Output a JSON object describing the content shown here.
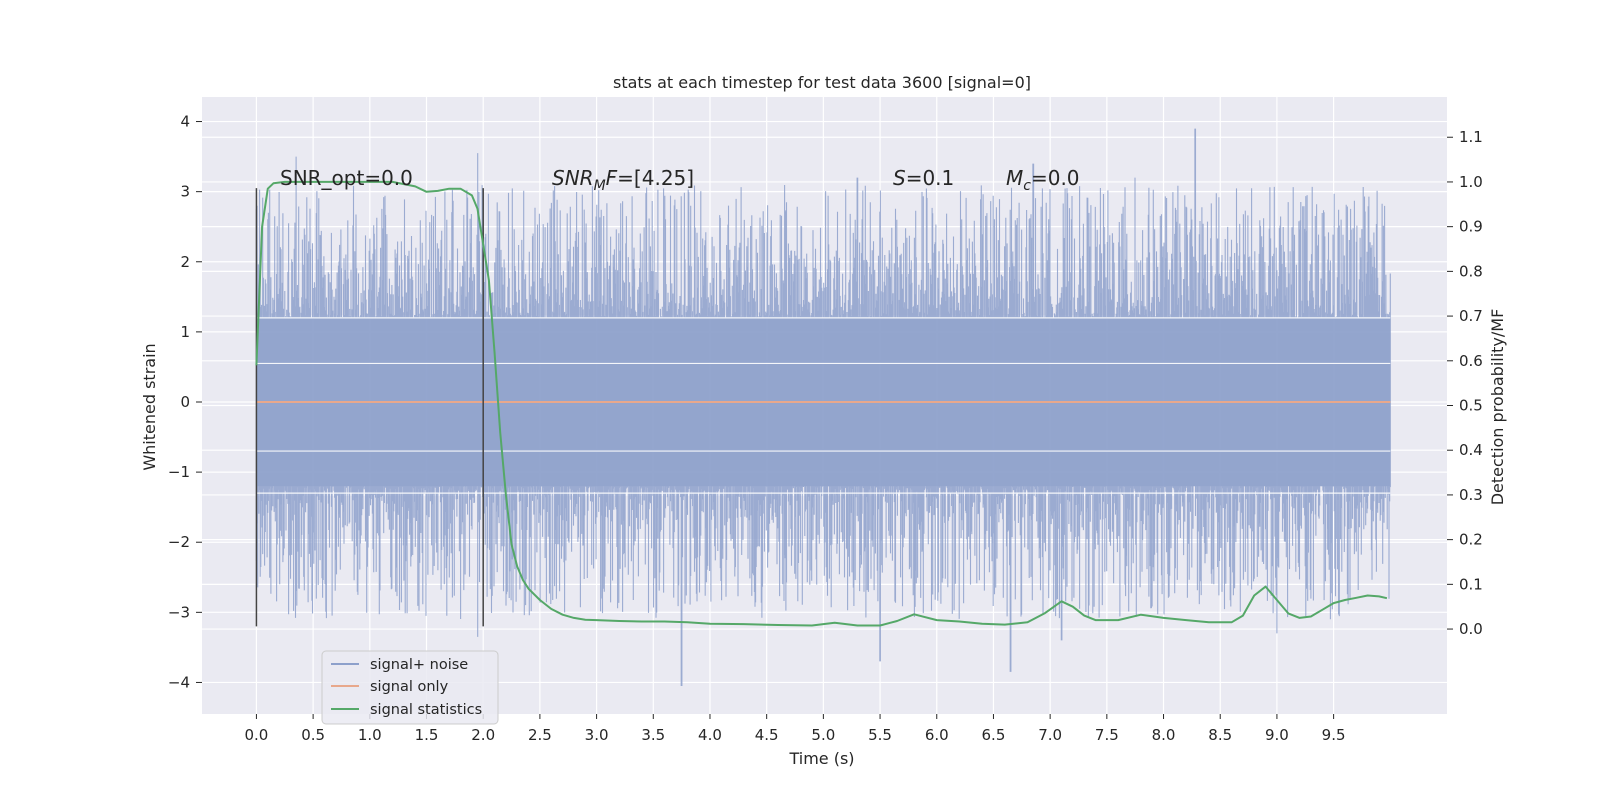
{
  "chart_data": {
    "type": "line",
    "title": "stats at each timestep for test data 3600 [signal=0]",
    "xlabel": "Time (s)",
    "ylabel": "Whitened strain",
    "y2label": "Detection probability/MF",
    "xlim": [
      -0.48,
      10.5
    ],
    "ylim": [
      -4.45,
      4.35
    ],
    "y2lim": [
      -0.19,
      1.19
    ],
    "xticks": [
      0.0,
      0.5,
      1.0,
      1.5,
      2.0,
      2.5,
      3.0,
      3.5,
      4.0,
      4.5,
      5.0,
      5.5,
      6.0,
      6.5,
      7.0,
      7.5,
      8.0,
      8.5,
      9.0,
      9.5
    ],
    "xtick_labels": [
      "0.0",
      "0.5",
      "1.0",
      "1.5",
      "2.0",
      "2.5",
      "3.0",
      "3.5",
      "4.0",
      "4.5",
      "5.0",
      "5.5",
      "6.0",
      "6.5",
      "7.0",
      "7.5",
      "8.0",
      "8.5",
      "9.0",
      "9.5"
    ],
    "yticks": [
      -4,
      -3,
      -2,
      -1,
      0,
      1,
      2,
      3,
      4
    ],
    "ytick_labels": [
      "−4",
      "−3",
      "−2",
      "−1",
      "0",
      "1",
      "2",
      "3",
      "4"
    ],
    "y2ticks": [
      0.0,
      0.1,
      0.2,
      0.3,
      0.4,
      0.5,
      0.6,
      0.7,
      0.8,
      0.9,
      1.0,
      1.1
    ],
    "y2tick_labels": [
      "0.0",
      "0.1",
      "0.2",
      "0.3",
      "0.4",
      "0.5",
      "0.6",
      "0.7",
      "0.8",
      "0.9",
      "1.0",
      "1.1"
    ],
    "grid": true,
    "legend_position": "lower-left",
    "legend": [
      {
        "label": "signal+ noise",
        "color": "#8da0cb"
      },
      {
        "label": "signal only",
        "color": "#e8a88c"
      },
      {
        "label": "signal statistics",
        "color": "#55a868"
      }
    ],
    "annotations": [
      {
        "id": "snr-opt",
        "text": "SNR_opt=0.0",
        "x": 0.2
      },
      {
        "id": "snr-mf",
        "text": "=[4.25]",
        "x": 2.6
      },
      {
        "id": "s-val",
        "text": "=0.1",
        "x": 5.6
      },
      {
        "id": "mc-val",
        "text": "=0.0",
        "x": 6.6
      }
    ],
    "vertical_lines": [
      0.0,
      2.0
    ],
    "series": [
      {
        "name": "signal+ noise",
        "axis": "left",
        "color": "#8da0cb",
        "description_kind": "noise-band",
        "x_range": [
          0.0,
          10.0
        ],
        "peaks_up": [
          {
            "x": 0.35,
            "y": 3.5
          },
          {
            "x": 1.95,
            "y": 3.55
          },
          {
            "x": 5.3,
            "y": 3.2
          },
          {
            "x": 6.85,
            "y": 3.4
          },
          {
            "x": 8.28,
            "y": 3.9
          },
          {
            "x": 7.75,
            "y": 3.2
          }
        ],
        "peaks_down": [
          {
            "x": 1.95,
            "y": -3.35
          },
          {
            "x": 3.75,
            "y": -4.05
          },
          {
            "x": 5.5,
            "y": -3.7
          },
          {
            "x": 6.65,
            "y": -3.85
          },
          {
            "x": 7.1,
            "y": -3.4
          },
          {
            "x": 9.0,
            "y": -3.3
          }
        ]
      },
      {
        "name": "signal only",
        "axis": "left",
        "color": "#e8a88c",
        "x": [
          0.0,
          10.0
        ],
        "y": [
          0.0,
          0.0
        ]
      },
      {
        "name": "signal statistics",
        "axis": "right",
        "color": "#55a868",
        "x": [
          0.0,
          0.05,
          0.1,
          0.15,
          0.25,
          0.4,
          0.6,
          0.8,
          1.0,
          1.2,
          1.4,
          1.5,
          1.6,
          1.7,
          1.8,
          1.9,
          1.95,
          2.0,
          2.05,
          2.1,
          2.15,
          2.2,
          2.25,
          2.3,
          2.35,
          2.4,
          2.5,
          2.6,
          2.7,
          2.8,
          2.9,
          3.0,
          3.2,
          3.4,
          3.6,
          3.8,
          4.0,
          4.3,
          4.6,
          4.9,
          5.1,
          5.3,
          5.5,
          5.65,
          5.8,
          6.0,
          6.2,
          6.4,
          6.6,
          6.8,
          6.95,
          7.1,
          7.2,
          7.3,
          7.4,
          7.6,
          7.8,
          8.0,
          8.2,
          8.4,
          8.6,
          8.7,
          8.8,
          8.9,
          9.0,
          9.1,
          9.2,
          9.3,
          9.4,
          9.5,
          9.6,
          9.7,
          9.8,
          9.9,
          9.97
        ],
        "y": [
          0.59,
          0.9,
          0.985,
          0.997,
          1.0,
          1.0,
          1.0,
          1.0,
          1.0,
          1.0,
          0.99,
          0.978,
          0.98,
          0.985,
          0.985,
          0.97,
          0.94,
          0.86,
          0.78,
          0.62,
          0.44,
          0.3,
          0.19,
          0.14,
          0.11,
          0.09,
          0.065,
          0.045,
          0.032,
          0.025,
          0.021,
          0.02,
          0.018,
          0.017,
          0.017,
          0.015,
          0.012,
          0.011,
          0.009,
          0.008,
          0.014,
          0.008,
          0.008,
          0.018,
          0.033,
          0.02,
          0.017,
          0.012,
          0.01,
          0.015,
          0.035,
          0.062,
          0.05,
          0.03,
          0.02,
          0.02,
          0.032,
          0.025,
          0.02,
          0.015,
          0.015,
          0.03,
          0.075,
          0.095,
          0.065,
          0.035,
          0.025,
          0.028,
          0.043,
          0.058,
          0.065,
          0.07,
          0.075,
          0.073,
          0.069
        ]
      }
    ]
  }
}
